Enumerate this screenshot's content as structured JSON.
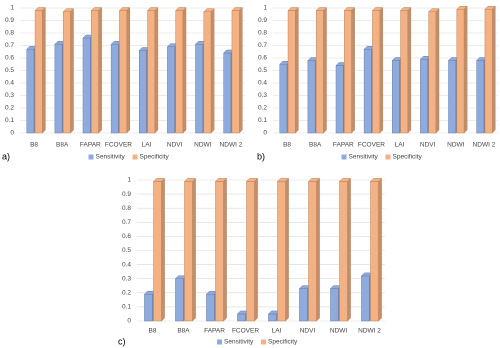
{
  "chart_data": [
    {
      "type": "bar",
      "label": "a)",
      "categories": [
        "B8",
        "B8A",
        "FAPAR",
        "FCOVER",
        "LAI",
        "NDVI",
        "NDWI",
        "NDWI 2"
      ],
      "series": [
        {
          "name": "Sensitivity",
          "color": "#8faadc",
          "values": [
            0.67,
            0.71,
            0.76,
            0.71,
            0.66,
            0.69,
            0.71,
            0.64
          ]
        },
        {
          "name": "Specificity",
          "color": "#f4b183",
          "values": [
            0.98,
            0.97,
            0.98,
            0.98,
            0.98,
            0.98,
            0.97,
            0.98
          ]
        }
      ],
      "ylim": [
        0,
        1
      ],
      "yticks": [
        0,
        0.1,
        0.2,
        0.3,
        0.4,
        0.5,
        0.6,
        0.7,
        0.8,
        0.9,
        1
      ],
      "grid": true,
      "legend": "bottom"
    },
    {
      "type": "bar",
      "label": "b)",
      "categories": [
        "B8",
        "B8A",
        "FAPAR",
        "FCOVER",
        "LAI",
        "NDVI",
        "NDWI",
        "NDWI 2"
      ],
      "series": [
        {
          "name": "Sensitivity",
          "color": "#8faadc",
          "values": [
            0.55,
            0.58,
            0.54,
            0.67,
            0.58,
            0.59,
            0.58,
            0.58
          ]
        },
        {
          "name": "Specificity",
          "color": "#f4b183",
          "values": [
            0.98,
            0.98,
            0.98,
            0.98,
            0.98,
            0.97,
            0.99,
            0.99
          ]
        }
      ],
      "ylim": [
        0,
        1
      ],
      "yticks": [
        0,
        0.1,
        0.2,
        0.3,
        0.4,
        0.5,
        0.6,
        0.7,
        0.8,
        0.9,
        1
      ],
      "grid": true,
      "legend": "bottom"
    },
    {
      "type": "bar",
      "label": "c)",
      "categories": [
        "B8",
        "B8A",
        "FAPAR",
        "FCOVER",
        "LAI",
        "NDVI",
        "NDWI",
        "NDWI 2"
      ],
      "series": [
        {
          "name": "Sensitivity",
          "color": "#8faadc",
          "values": [
            0.19,
            0.3,
            0.19,
            0.05,
            0.05,
            0.23,
            0.23,
            0.32
          ]
        },
        {
          "name": "Specificity",
          "color": "#f4b183",
          "values": [
            0.99,
            0.99,
            0.99,
            0.99,
            0.99,
            0.99,
            0.99,
            0.99
          ]
        }
      ],
      "ylim": [
        0,
        1
      ],
      "yticks": [
        0,
        0.1,
        0.2,
        0.3,
        0.4,
        0.5,
        0.6,
        0.7,
        0.8,
        0.9,
        1
      ],
      "grid": true,
      "legend": "bottom"
    }
  ]
}
